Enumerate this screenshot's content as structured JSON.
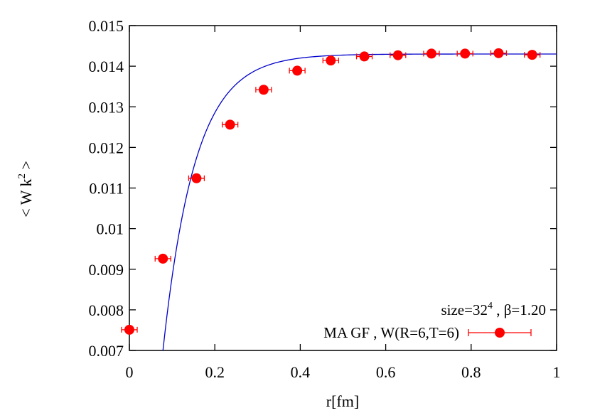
{
  "chart_data": {
    "type": "scatter",
    "xlabel": "r[fm]",
    "ylabel_parts": {
      "open": "< W k",
      "sup": "2",
      "close": " >"
    },
    "xlim": [
      0,
      1
    ],
    "ylim": [
      0.007,
      0.015
    ],
    "x_ticks": [
      "0",
      "0.2",
      "0.4",
      "0.6",
      "0.8",
      "1"
    ],
    "y_ticks": [
      "0.007",
      "0.008",
      "0.009",
      "0.01",
      "0.011",
      "0.012",
      "0.013",
      "0.014",
      "0.015"
    ],
    "annotation": {
      "prefix": "size=32",
      "sup": "4",
      "suffix": " , β=1.20"
    },
    "legend_position": "bottom-right",
    "series": [
      {
        "name": "MA GF , W(R=6,T=6)",
        "color": "#ff0000",
        "marker": "circle",
        "error_bars": true,
        "x": [
          0.0,
          0.0786,
          0.1571,
          0.2357,
          0.3143,
          0.3929,
          0.4714,
          0.55,
          0.6286,
          0.7071,
          0.7857,
          0.8643,
          0.9429
        ],
        "y": [
          0.00751,
          0.00926,
          0.01124,
          0.01256,
          0.01342,
          0.01389,
          0.01414,
          0.01424,
          0.01427,
          0.01431,
          0.01431,
          0.01432,
          0.01428
        ]
      }
    ],
    "fit": {
      "color": "#0000cc",
      "x_start": 0.0786,
      "y_start": 0.007,
      "asymptote": 0.0143,
      "decay_length": 0.075
    }
  }
}
